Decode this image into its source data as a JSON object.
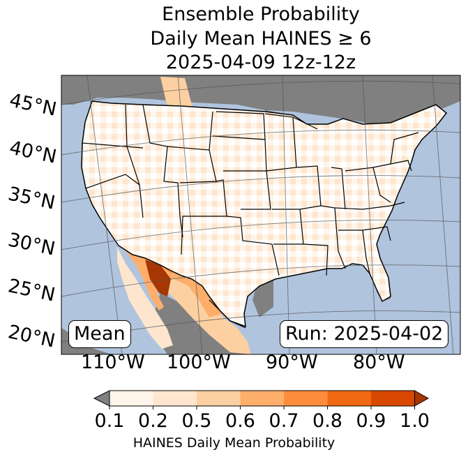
{
  "title": {
    "line1": "Ensemble Probability",
    "line2": "Daily Mean HAINES ≥ 6",
    "line3": "2025-04-09 12z-12z"
  },
  "map": {
    "lat_labels": [
      "45°N",
      "40°N",
      "35°N",
      "30°N",
      "25°N",
      "20°N"
    ],
    "lon_labels": [
      "110°W",
      "100°W",
      "90°W",
      "80°W"
    ],
    "stat_label": "Mean",
    "run_label": "Run: 2025-04-02",
    "colors": {
      "ocean": "#b0c4de",
      "missing": "#808080",
      "boundaries": "#000000"
    }
  },
  "colorbar": {
    "ticks": [
      "0.1",
      "0.2",
      "0.5",
      "0.6",
      "0.7",
      "0.8",
      "0.9",
      "1.0"
    ],
    "colors": [
      "#fff5eb",
      "#fee6ce",
      "#fdd0a2",
      "#fdae6b",
      "#fd8d3c",
      "#f16913",
      "#d94801"
    ],
    "under_color": "#808080",
    "over_color": "#a63603",
    "label": "HAINES Daily Mean Probability"
  }
}
